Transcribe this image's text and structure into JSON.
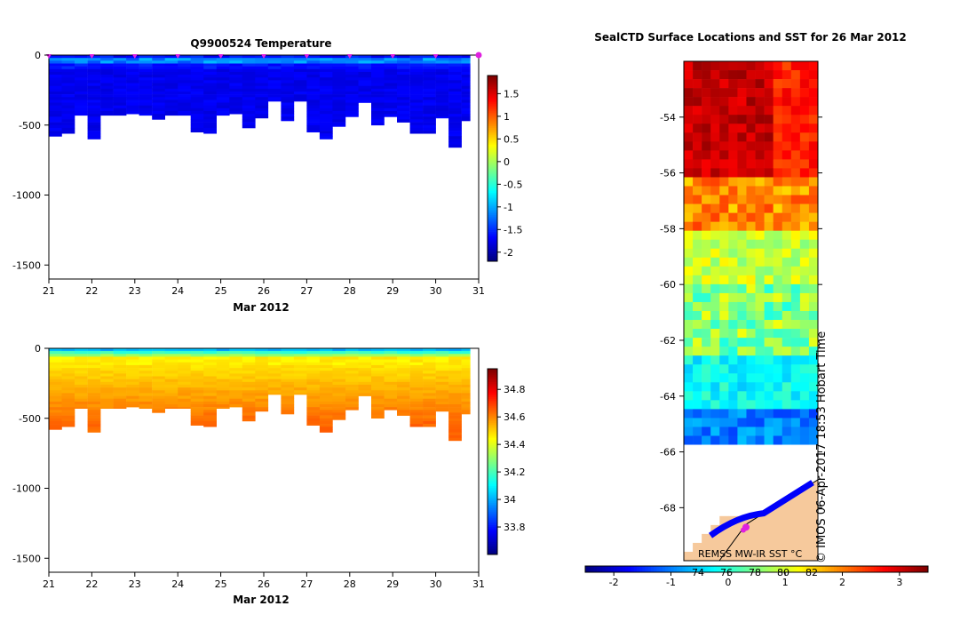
{
  "colors": {
    "land": "#f6c99c",
    "float_marker": "#e020e0",
    "axis": "#000000",
    "no_data": "#ffffff"
  },
  "chart_data": [
    {
      "id": "temperature-section",
      "type": "heatmap",
      "title": "Q9900524  Temperature",
      "xlabel": "Mar 2012",
      "ylabel": "",
      "x_ticks": [
        "21",
        "22",
        "23",
        "24",
        "25",
        "26",
        "27",
        "28",
        "29",
        "30",
        "31"
      ],
      "y_ticks": [
        "0",
        "-500",
        "-1000",
        "-1500"
      ],
      "xlim": [
        21,
        31
      ],
      "ylim": [
        -1600,
        0
      ],
      "colorbar": {
        "ticks": [
          "1.5",
          "1",
          "0.5",
          "0",
          "-0.5",
          "-1",
          "-1.5",
          "-2"
        ],
        "range": [
          -2.2,
          1.9
        ]
      },
      "profile_days": [
        21.0,
        21.3,
        21.6,
        21.9,
        22.2,
        22.5,
        22.8,
        23.1,
        23.4,
        23.7,
        24.0,
        24.3,
        24.6,
        24.9,
        25.2,
        25.5,
        25.8,
        26.1,
        26.4,
        26.7,
        27.0,
        27.3,
        27.6,
        27.9,
        28.2,
        28.5,
        28.8,
        29.1,
        29.4,
        29.7,
        30.0,
        30.3,
        30.6
      ],
      "profile_max_depth": [
        580,
        560,
        430,
        600,
        430,
        430,
        420,
        430,
        460,
        430,
        430,
        550,
        560,
        430,
        420,
        520,
        450,
        330,
        470,
        330,
        550,
        600,
        510,
        440,
        340,
        500,
        440,
        480,
        560,
        560,
        450,
        660,
        470
      ],
      "surface_markers_days": [
        21,
        22,
        23,
        24,
        25,
        26,
        27,
        28,
        29,
        30,
        31
      ]
    },
    {
      "id": "salinity-section",
      "type": "heatmap",
      "title": "",
      "xlabel": "Mar 2012",
      "ylabel": "",
      "x_ticks": [
        "21",
        "22",
        "23",
        "24",
        "25",
        "26",
        "27",
        "28",
        "29",
        "30",
        "31"
      ],
      "y_ticks": [
        "0",
        "-500",
        "-1000",
        "-1500"
      ],
      "xlim": [
        21,
        31
      ],
      "ylim": [
        -1600,
        0
      ],
      "colorbar": {
        "ticks": [
          "34.8",
          "34.6",
          "34.4",
          "34.2",
          "34",
          "33.8"
        ],
        "range": [
          33.6,
          34.95
        ]
      },
      "profile_days": [
        21.0,
        21.3,
        21.6,
        21.9,
        22.2,
        22.5,
        22.8,
        23.1,
        23.4,
        23.7,
        24.0,
        24.3,
        24.6,
        24.9,
        25.2,
        25.5,
        25.8,
        26.1,
        26.4,
        26.7,
        27.0,
        27.3,
        27.6,
        27.9,
        28.2,
        28.5,
        28.8,
        29.1,
        29.4,
        29.7,
        30.0,
        30.3,
        30.6
      ],
      "profile_max_depth": [
        580,
        560,
        430,
        600,
        430,
        430,
        420,
        430,
        460,
        430,
        430,
        550,
        560,
        430,
        420,
        520,
        450,
        330,
        470,
        330,
        550,
        600,
        510,
        440,
        340,
        500,
        440,
        480,
        560,
        560,
        450,
        660,
        470
      ]
    },
    {
      "id": "sst-map",
      "type": "heatmap",
      "title": "SealCTD Surface Locations and SST for 26 Mar 2012",
      "xlabel": "",
      "ylabel": "",
      "y_ticks": [
        "-54",
        "-56",
        "-58",
        "-60",
        "-62",
        "-64",
        "-66",
        "-68"
      ],
      "ylim": [
        -69.9,
        -52.0
      ],
      "colorbar": {
        "ticks": [
          "-2",
          "-1",
          "0",
          "1",
          "2",
          "3"
        ],
        "range": [
          -2.5,
          3.5
        ]
      },
      "colorbar_overlay_ticks": [
        "74",
        "76",
        "78",
        "80",
        "82"
      ],
      "source_label": "REMSS MW-IR SST °C",
      "credit": "© IMOS 06-Apr-2017 18:53 Hobart Time"
    }
  ]
}
